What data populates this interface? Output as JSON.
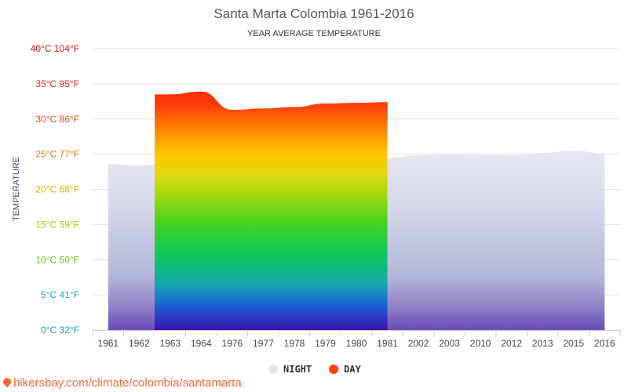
{
  "chart_data": {
    "type": "area",
    "title": "Santa Marta Colombia 1961-2016",
    "subtitle": "YEAR AVERAGE TEMPERATURE",
    "ylabel": "TEMPERATURE",
    "ylim": [
      0,
      40
    ],
    "yticks": [
      "0°C 32°F",
      "5°C 41°F",
      "10°C 50°F",
      "15°C 59°F",
      "20°C 68°F",
      "25°C 77°F",
      "30°C 86°F",
      "35°C 95°F",
      "40°C 104°F"
    ],
    "ytick_colors": [
      "#1b8fd8",
      "#1aa8c8",
      "#5cc21c",
      "#a7c70a",
      "#d8b300",
      "#e07800",
      "#e34a1a",
      "#e3261a",
      "#e3121a"
    ],
    "categories": [
      "1961",
      "1962",
      "1963",
      "1964",
      "1976",
      "1977",
      "1978",
      "1979",
      "1980",
      "1981",
      "2002",
      "2003",
      "2010",
      "2012",
      "2013",
      "2015",
      "2016"
    ],
    "series": [
      {
        "name": "NIGHT",
        "color": "#e3e6f2",
        "values": [
          23.6,
          23.4,
          23.7,
          23.9,
          23.8,
          24.1,
          24.1,
          24.4,
          24.5,
          24.5,
          24.8,
          25.0,
          24.9,
          24.8,
          25.2,
          25.5,
          25.1
        ]
      },
      {
        "name": "DAY",
        "color": "#ff4400",
        "values": [
          null,
          null,
          33.5,
          33.9,
          31.3,
          31.5,
          31.7,
          32.2,
          32.3,
          32.4,
          null,
          null,
          null,
          null,
          null,
          null,
          null
        ]
      }
    ],
    "legend_position": "bottom",
    "grid": true
  },
  "legend": {
    "night_label": "NIGHT",
    "day_label": "DAY",
    "night_color": "#e3e6f2",
    "day_color": "#ff4400"
  },
  "footer": {
    "url": "hikersbay.com/climate/colombia/santamarta",
    "pin_icon": "location-pin-icon"
  }
}
